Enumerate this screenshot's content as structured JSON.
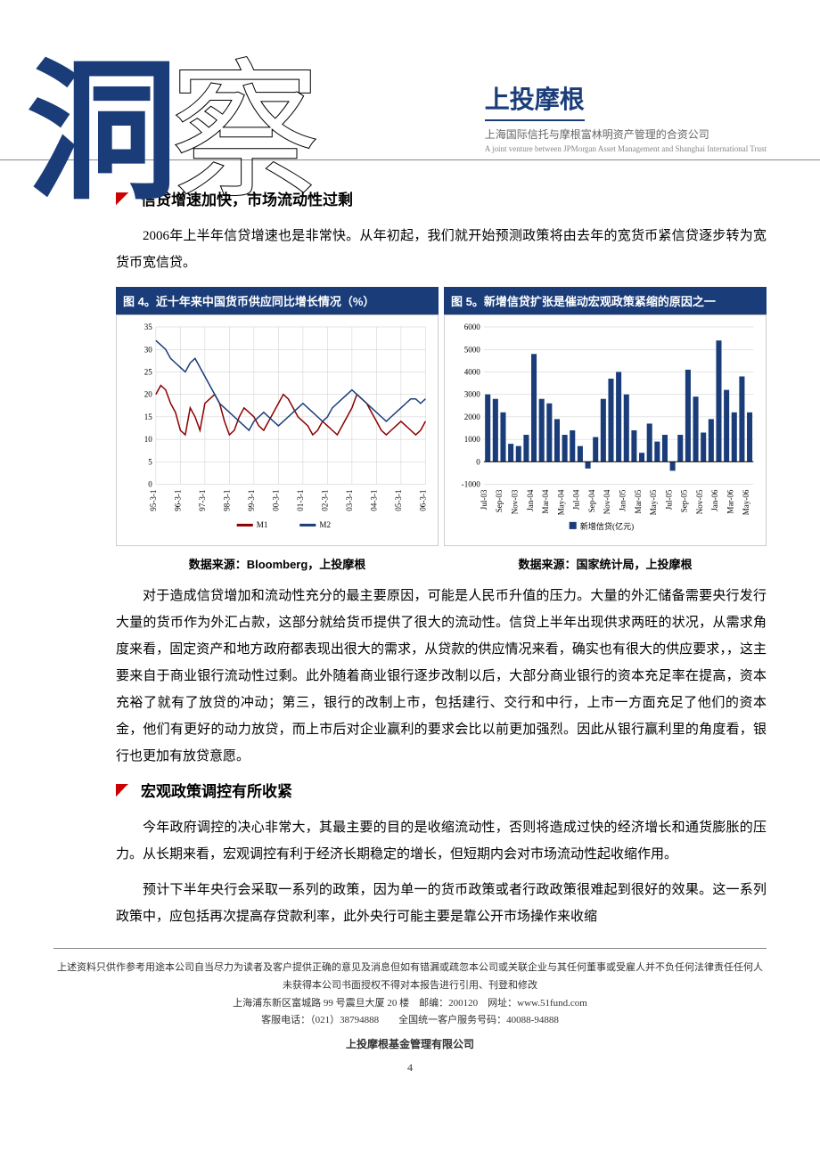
{
  "header": {
    "logo_ch1": "洞",
    "logo_ch2": "察",
    "brand_name": "上投摩根",
    "brand_sub": "上海国际信托与摩根富林明资产管理的合资公司",
    "brand_en": "A joint venture between JPMorgan Asset Management and Shanghai International Trust"
  },
  "section1": {
    "title": "信贷增速加快，市场流动性过剩",
    "para": "2006年上半年信贷增速也是非常快。从年初起，我们就开始预测政策将由去年的宽货币紧信贷逐步转为宽货币宽信贷。"
  },
  "chart4": {
    "title": "图 4。近十年来中国货币供应同比增长情况（%）",
    "source": "数据来源：Bloomberg，上投摩根",
    "type": "line",
    "ylim": [
      0,
      35
    ],
    "yticks": [
      0,
      5,
      10,
      15,
      20,
      25,
      30,
      35
    ],
    "x_labels": [
      "95-3-1",
      "96-3-1",
      "97-3-1",
      "98-3-1",
      "99-3-1",
      "00-3-1",
      "01-3-1",
      "02-3-1",
      "03-3-1",
      "04-3-1",
      "05-3-1",
      "06-3-1"
    ],
    "series": [
      {
        "name": "M1",
        "color": "#8b0000",
        "data": [
          20,
          22,
          21,
          18,
          16,
          12,
          11,
          17,
          15,
          12,
          18,
          19,
          20,
          18,
          14,
          11,
          12,
          15,
          17,
          16,
          15,
          13,
          12,
          14,
          16,
          18,
          20,
          19,
          17,
          15,
          14,
          13,
          11,
          12,
          14,
          13,
          12,
          11,
          13,
          15,
          17,
          20,
          19,
          18,
          16,
          14,
          12,
          11,
          12,
          13,
          14,
          13,
          12,
          11,
          12,
          14
        ]
      },
      {
        "name": "M2",
        "color": "#1a3d7a",
        "data": [
          32,
          31,
          30,
          28,
          27,
          26,
          25,
          27,
          28,
          26,
          24,
          22,
          20,
          18,
          17,
          16,
          15,
          14,
          13,
          12,
          14,
          15,
          16,
          15,
          14,
          13,
          14,
          15,
          16,
          17,
          18,
          17,
          16,
          15,
          14,
          15,
          17,
          18,
          19,
          20,
          21,
          20,
          19,
          18,
          17,
          16,
          15,
          14,
          15,
          16,
          17,
          18,
          19,
          19,
          18,
          19
        ]
      }
    ],
    "grid_color": "#cccccc",
    "bg": "#ffffff"
  },
  "chart5": {
    "title": "图 5。新增信贷扩张是催动宏观政策紧缩的原因之一",
    "source": "数据来源：国家统计局，上投摩根",
    "type": "bar",
    "ylim": [
      -1000,
      6000
    ],
    "yticks": [
      -1000,
      0,
      1000,
      2000,
      3000,
      4000,
      5000,
      6000
    ],
    "x_labels": [
      "Jul-03",
      "Sep-03",
      "Nov-03",
      "Jan-04",
      "Mar-04",
      "May-04",
      "Jul-04",
      "Sep-04",
      "Nov-04",
      "Jan-05",
      "Mar-05",
      "May-05",
      "Jul-05",
      "Sep-05",
      "Nov-05",
      "Jan-06",
      "Mar-06",
      "May-06"
    ],
    "legend": "新增信贷(亿元)",
    "bar_color": "#1a3d7a",
    "data": [
      3000,
      2800,
      2200,
      800,
      700,
      1200,
      4800,
      2800,
      2600,
      1900,
      1200,
      1400,
      700,
      -300,
      1100,
      2800,
      3700,
      4000,
      3000,
      1400,
      400,
      1700,
      900,
      1200,
      -400,
      1200,
      4100,
      2900,
      1300,
      1900,
      5400,
      3200,
      2200,
      3800,
      2200
    ]
  },
  "body": {
    "para2": "对于造成信贷增加和流动性充分的最主要原因，可能是人民币升值的压力。大量的外汇储备需要央行发行大量的货币作为外汇占款，这部分就给货币提供了很大的流动性。信贷上半年出现供求两旺的状况，从需求角度来看，固定资产和地方政府都表现出很大的需求，从贷款的供应情况来看，确实也有很大的供应要求，，这主要来自于商业银行流动性过剩。此外随着商业银行逐步改制以后，大部分商业银行的资本充足率在提高，资本充裕了就有了放贷的冲动；第三，银行的改制上市，包括建行、交行和中行，上市一方面充足了他们的资本金，他们有更好的动力放贷，而上市后对企业赢利的要求会比以前更加强烈。因此从银行赢利里的角度看，银行也更加有放贷意愿。"
  },
  "section2": {
    "title": "宏观政策调控有所收紧",
    "para1": "今年政府调控的决心非常大，其最主要的目的是收缩流动性，否则将造成过快的经济增长和通货膨胀的压力。从长期来看，宏观调控有利于经济长期稳定的增长，但短期内会对市场流动性起收缩作用。",
    "para2": "预计下半年央行会采取一系列的政策，因为单一的货币政策或者行政政策很难起到很好的效果。这一系列政策中，应包括再次提高存贷款利率，此外央行可能主要是靠公开市场操作来收缩"
  },
  "footer": {
    "disclaimer": "上述资料只供作参考用途本公司自当尽力为读者及客户提供正确的意见及消息但如有错漏或疏忽本公司或关联企业与其任何董事或受雇人并不负任何法律责任任何人未获得本公司书面授权不得对本报告进行引用、刊登和修改",
    "address": "上海浦东新区富城路 99 号震旦大厦 20 楼　邮编：200120　网址：www.51fund.com",
    "phone": "客服电话：（021）38794888　　全国统一客户服务号码：40088-94888",
    "company": "上投摩根基金管理有限公司",
    "page": "4"
  }
}
